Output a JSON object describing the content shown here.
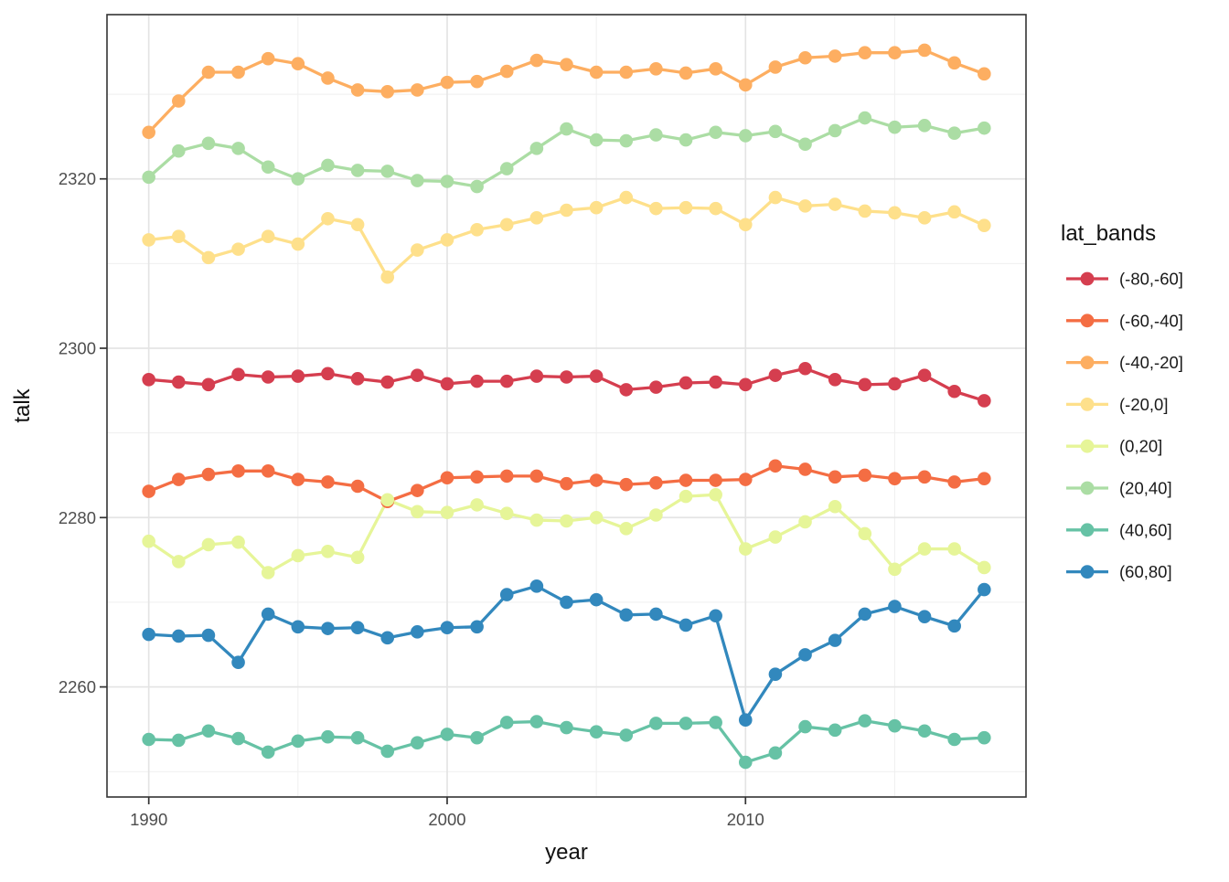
{
  "chart_data": {
    "type": "line",
    "title": "",
    "xlabel": "year",
    "ylabel": "talk",
    "legend_title": "lat_bands",
    "legend_position": "right",
    "grid": true,
    "xlim": [
      1988.6,
      2019.4
    ],
    "ylim": [
      2247.0,
      2339.4
    ],
    "x_ticks": [
      1990,
      2000,
      2010
    ],
    "x_minor": [
      1995,
      2005,
      2015
    ],
    "y_ticks": [
      2260,
      2280,
      2300,
      2320
    ],
    "y_minor": [
      2250,
      2270,
      2290,
      2310,
      2330
    ],
    "x": [
      1990,
      1991,
      1992,
      1993,
      1994,
      1995,
      1996,
      1997,
      1998,
      1999,
      2000,
      2001,
      2002,
      2003,
      2004,
      2005,
      2006,
      2007,
      2008,
      2009,
      2010,
      2011,
      2012,
      2013,
      2014,
      2015,
      2016,
      2017,
      2018
    ],
    "series": [
      {
        "name": "(-80,-60]",
        "color": "#D53E4F",
        "values": [
          2296.3,
          2296.0,
          2295.7,
          2296.9,
          2296.6,
          2296.7,
          2297.0,
          2296.4,
          2296.0,
          2296.8,
          2295.8,
          2296.1,
          2296.1,
          2296.7,
          2296.6,
          2296.7,
          2295.1,
          2295.4,
          2295.9,
          2296.0,
          2295.7,
          2296.8,
          2297.6,
          2296.3,
          2295.7,
          2295.8,
          2296.8,
          2294.9,
          2293.8
        ]
      },
      {
        "name": "(-60,-40]",
        "color": "#F46D43",
        "values": [
          2283.1,
          2284.5,
          2285.1,
          2285.5,
          2285.5,
          2284.5,
          2284.2,
          2283.7,
          2281.9,
          2283.2,
          2284.7,
          2284.8,
          2284.9,
          2284.9,
          2284.0,
          2284.4,
          2283.9,
          2284.1,
          2284.4,
          2284.4,
          2284.5,
          2286.1,
          2285.7,
          2284.8,
          2285.0,
          2284.6,
          2284.8,
          2284.2,
          2284.6
        ]
      },
      {
        "name": "(-40,-20]",
        "color": "#FDAE61",
        "values": [
          2325.5,
          2329.2,
          2332.6,
          2332.6,
          2334.2,
          2333.6,
          2331.9,
          2330.5,
          2330.3,
          2330.5,
          2331.4,
          2331.5,
          2332.7,
          2334.0,
          2333.5,
          2332.6,
          2332.6,
          2333.0,
          2332.5,
          2333.0,
          2331.1,
          2333.2,
          2334.3,
          2334.5,
          2334.9,
          2334.9,
          2335.2,
          2333.7,
          2332.4
        ]
      },
      {
        "name": "(-20,0]",
        "color": "#FEE08B",
        "values": [
          2312.8,
          2313.2,
          2310.7,
          2311.7,
          2313.2,
          2312.3,
          2315.3,
          2314.6,
          2308.4,
          2311.6,
          2312.8,
          2314.0,
          2314.6,
          2315.4,
          2316.3,
          2316.6,
          2317.8,
          2316.5,
          2316.6,
          2316.5,
          2314.6,
          2317.8,
          2316.8,
          2317.0,
          2316.2,
          2316.0,
          2315.4,
          2316.1,
          2314.5
        ]
      },
      {
        "name": "(0,20]",
        "color": "#E6F598",
        "values": [
          2277.2,
          2274.8,
          2276.8,
          2277.1,
          2273.5,
          2275.5,
          2276.0,
          2275.3,
          2282.1,
          2280.7,
          2280.6,
          2281.5,
          2280.5,
          2279.7,
          2279.6,
          2280.0,
          2278.7,
          2280.3,
          2282.5,
          2282.7,
          2276.3,
          2277.7,
          2279.5,
          2281.3,
          2278.1,
          2273.9,
          2276.3,
          2276.3,
          2274.1
        ]
      },
      {
        "name": "(20,40]",
        "color": "#ABDDA4",
        "values": [
          2320.2,
          2323.3,
          2324.2,
          2323.6,
          2321.4,
          2320.0,
          2321.6,
          2321.0,
          2320.9,
          2319.8,
          2319.7,
          2319.1,
          2321.2,
          2323.6,
          2325.9,
          2324.6,
          2324.5,
          2325.2,
          2324.6,
          2325.5,
          2325.1,
          2325.6,
          2324.1,
          2325.7,
          2327.2,
          2326.1,
          2326.3,
          2325.4,
          2326.0
        ]
      },
      {
        "name": "(40,60]",
        "color": "#66C2A5",
        "values": [
          2253.8,
          2253.7,
          2254.8,
          2253.9,
          2252.3,
          2253.6,
          2254.1,
          2254.0,
          2252.4,
          2253.4,
          2254.4,
          2254.0,
          2255.8,
          2255.9,
          2255.2,
          2254.7,
          2254.3,
          2255.7,
          2255.7,
          2255.8,
          2251.1,
          2252.2,
          2255.3,
          2254.9,
          2256.0,
          2255.4,
          2254.8,
          2253.8,
          2254.0
        ]
      },
      {
        "name": "(60,80]",
        "color": "#3288BD",
        "values": [
          2266.2,
          2266.0,
          2266.1,
          2262.9,
          2268.6,
          2267.1,
          2266.9,
          2267.0,
          2265.8,
          2266.5,
          2267.0,
          2267.1,
          2270.9,
          2271.9,
          2270.0,
          2270.3,
          2268.5,
          2268.6,
          2267.3,
          2268.4,
          2256.1,
          2261.5,
          2263.8,
          2265.5,
          2268.6,
          2269.5,
          2268.3,
          2267.2,
          2271.5
        ]
      }
    ],
    "style": {
      "panel_background": "#FFFFFF",
      "major_grid_color": "#E4E4E4",
      "minor_grid_color": "#EFEFEF",
      "panel_border_color": "#343434",
      "tick_color": "#333333",
      "tick_label_color": "#4D4D4D"
    }
  }
}
